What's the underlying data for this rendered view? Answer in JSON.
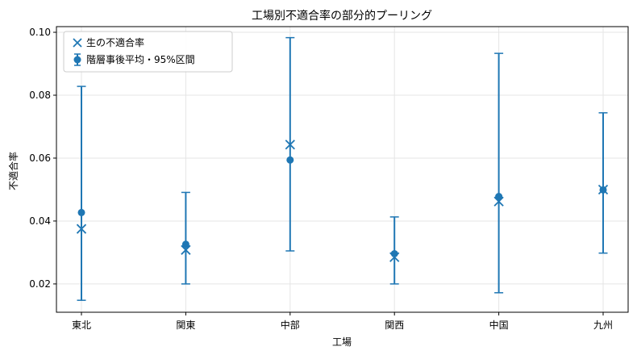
{
  "chart_data": {
    "type": "scatter",
    "title": "工場別不適合率の部分的プーリング",
    "xlabel": "工場",
    "ylabel": "不適合率",
    "categories": [
      "東北",
      "関東",
      "中部",
      "関西",
      "中国",
      "九州"
    ],
    "ylim": [
      0.011,
      0.1018
    ],
    "yticks": [
      0.02,
      0.04,
      0.06,
      0.08,
      0.1
    ],
    "ytick_labels": [
      "0.02",
      "0.04",
      "0.06",
      "0.08",
      "0.10"
    ],
    "grid": true,
    "legend_position": "top-left",
    "color": "#1f77b4",
    "series": [
      {
        "name": "生の不適合率",
        "marker": "x",
        "values": [
          0.0375,
          0.0308,
          0.0643,
          0.0285,
          0.0462,
          0.05
        ]
      },
      {
        "name": "階層事後平均・95%区間",
        "marker": "circle",
        "values": [
          0.0427,
          0.0326,
          0.0594,
          0.0296,
          0.0478,
          0.0499
        ],
        "lower": [
          0.0148,
          0.02,
          0.0305,
          0.02,
          0.0172,
          0.0298
        ],
        "upper": [
          0.0828,
          0.0491,
          0.0983,
          0.0413,
          0.0933,
          0.0744
        ]
      }
    ]
  }
}
